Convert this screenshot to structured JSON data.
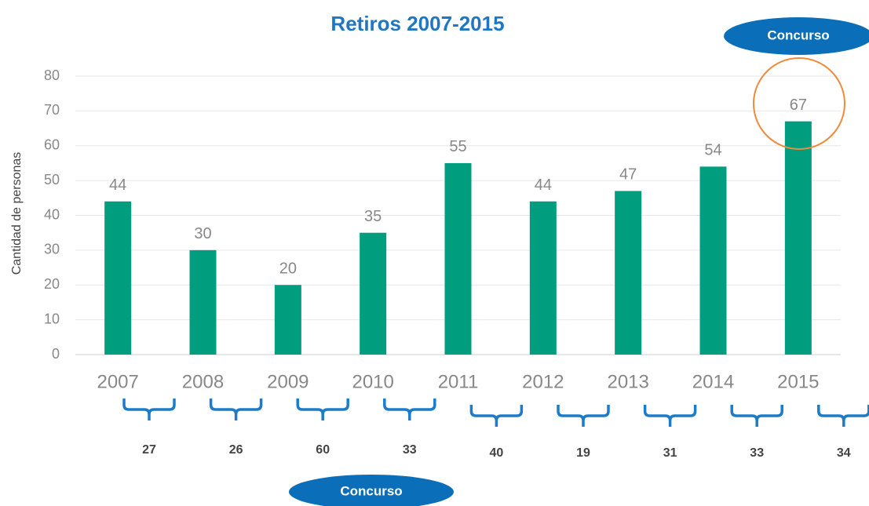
{
  "chart_data": {
    "type": "bar",
    "title": "Retiros 2007-2015",
    "y_label": "Cantidad de personas",
    "categories": [
      "2007",
      "2008",
      "2009",
      "2010",
      "2011",
      "2012",
      "2013",
      "2014",
      "2015"
    ],
    "values": [
      44,
      30,
      20,
      35,
      55,
      44,
      47,
      54,
      67
    ],
    "color": "#009e7e",
    "ylim": [
      0,
      80
    ],
    "yticks": [
      0,
      10,
      20,
      30,
      40,
      50,
      60,
      70,
      80
    ],
    "grid": true,
    "brace_values": [
      27,
      26,
      60,
      33,
      40,
      19,
      31,
      33,
      34
    ],
    "callouts": [
      "Concurso",
      "Concurso"
    ]
  }
}
